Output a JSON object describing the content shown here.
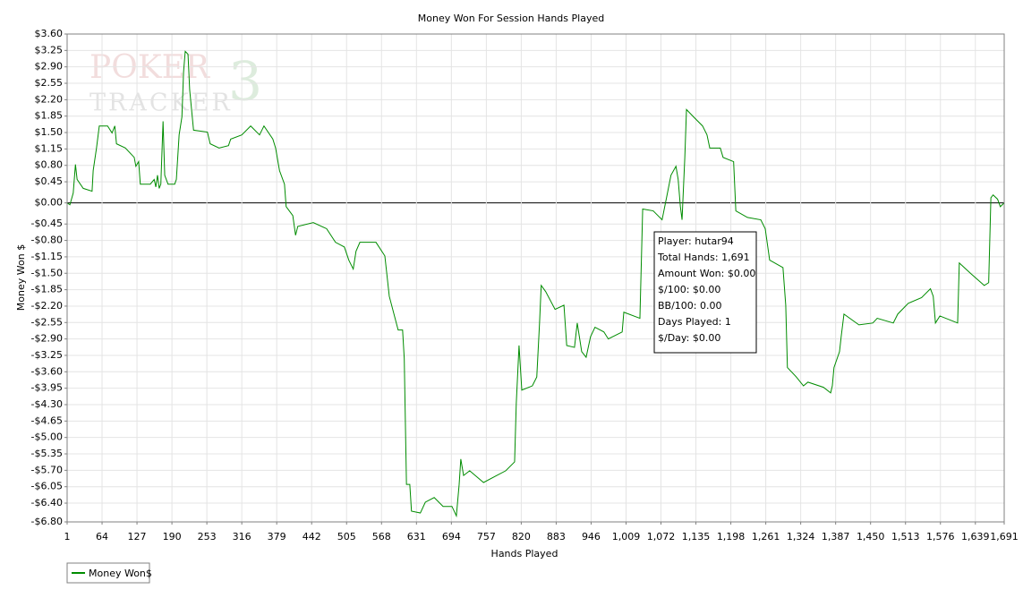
{
  "chart_data": {
    "type": "line",
    "title": "Money Won For Session Hands Played",
    "x_label": "Hands Played",
    "y_label": "Money Won $",
    "watermark": [
      "POKER",
      "TRACKER",
      "3"
    ],
    "tooltip": [
      "Player: hutar94",
      "Total Hands: 1,691",
      "Amount Won: $0.00",
      "$/100: $0.00",
      "BB/100: 0.00",
      "Days Played: 1",
      "$/Day: $0.00"
    ],
    "grid": true,
    "legend": "bottom-left",
    "xlim": [
      1,
      1691
    ],
    "ylim": [
      -6.8,
      3.6
    ],
    "xticks": [
      1,
      64,
      127,
      190,
      253,
      316,
      379,
      442,
      505,
      568,
      631,
      694,
      757,
      820,
      883,
      946,
      {
        "value": 1009,
        "label": "1,009"
      },
      {
        "value": 1072,
        "label": "1,072"
      },
      {
        "value": 1135,
        "label": "1,135"
      },
      {
        "value": 1198,
        "label": "1,198"
      },
      {
        "value": 1261,
        "label": "1,261"
      },
      {
        "value": 1324,
        "label": "1,324"
      },
      {
        "value": 1387,
        "label": "1,387"
      },
      {
        "value": 1450,
        "label": "1,450"
      },
      {
        "value": 1513,
        "label": "1,513"
      },
      {
        "value": 1576,
        "label": "1,576"
      },
      {
        "value": 1639,
        "label": "1,639"
      },
      {
        "value": 1691,
        "label": "1,691"
      }
    ],
    "yticks": [
      {
        "value": 3.6,
        "label": "$3.60"
      },
      {
        "value": 3.25,
        "label": "$3.25"
      },
      {
        "value": 2.9,
        "label": "$2.90"
      },
      {
        "value": 2.55,
        "label": "$2.55"
      },
      {
        "value": 2.2,
        "label": "$2.20"
      },
      {
        "value": 1.85,
        "label": "$1.85"
      },
      {
        "value": 1.5,
        "label": "$1.50"
      },
      {
        "value": 1.15,
        "label": "$1.15"
      },
      {
        "value": 0.8,
        "label": "$0.80"
      },
      {
        "value": 0.45,
        "label": "$0.45"
      },
      {
        "value": 0,
        "label": "$0.00"
      },
      {
        "value": -0.45,
        "label": "-$0.45"
      },
      {
        "value": -0.8,
        "label": "-$0.80"
      },
      {
        "value": -1.15,
        "label": "-$1.15"
      },
      {
        "value": -1.5,
        "label": "-$1.50"
      },
      {
        "value": -1.85,
        "label": "-$1.85"
      },
      {
        "value": -2.2,
        "label": "-$2.20"
      },
      {
        "value": -2.55,
        "label": "-$2.55"
      },
      {
        "value": -2.9,
        "label": "-$2.90"
      },
      {
        "value": -3.25,
        "label": "-$3.25"
      },
      {
        "value": -3.6,
        "label": "-$3.60"
      },
      {
        "value": -3.95,
        "label": "-$3.95"
      },
      {
        "value": -4.3,
        "label": "-$4.30"
      },
      {
        "value": -4.65,
        "label": "-$4.65"
      },
      {
        "value": -5.0,
        "label": "-$5.00"
      },
      {
        "value": -5.35,
        "label": "-$5.35"
      },
      {
        "value": -5.7,
        "label": "-$5.70"
      },
      {
        "value": -6.05,
        "label": "-$6.05"
      },
      {
        "value": -6.4,
        "label": "-$6.40"
      },
      {
        "value": -6.8,
        "label": "-$6.80"
      }
    ],
    "x": [
      1,
      6,
      12,
      16,
      19,
      30,
      46,
      48,
      54,
      59,
      74,
      82,
      87,
      90,
      106,
      122,
      125,
      130,
      133,
      151,
      158,
      161,
      164,
      167,
      170,
      174,
      177,
      183,
      195,
      198,
      203,
      208,
      211,
      214,
      219,
      222,
      229,
      254,
      259,
      275,
      292,
      296,
      316,
      332,
      348,
      356,
      372,
      377,
      384,
      393,
      396,
      408,
      413,
      417,
      445,
      469,
      485,
      501,
      509,
      517,
      522,
      529,
      558,
      574,
      582,
      598,
      606,
      609,
      613,
      619,
      622,
      638,
      647,
      663,
      679,
      695,
      703,
      708,
      711,
      716,
      727,
      752,
      776,
      792,
      808,
      811,
      816,
      821,
      840,
      848,
      853,
      856,
      864,
      881,
      897,
      902,
      916,
      921,
      929,
      937,
      945,
      953,
      969,
      977,
      1002,
      1005,
      1034,
      1039,
      1058,
      1074,
      1082,
      1090,
      1099,
      1103,
      1107,
      1110,
      1115,
      1118,
      1131,
      1147,
      1155,
      1160,
      1179,
      1184,
      1203,
      1207,
      1228,
      1252,
      1260,
      1268,
      1292,
      1297,
      1300,
      1316,
      1329,
      1337,
      1365,
      1378,
      1381,
      1384,
      1394,
      1397,
      1402,
      1429,
      1454,
      1462,
      1491,
      1499,
      1518,
      1542,
      1558,
      1563,
      1567,
      1575,
      1607,
      1610,
      1631,
      1655,
      1663,
      1667,
      1671,
      1679,
      1684,
      1691
    ],
    "series": [
      {
        "name": "Money Won$",
        "color": "#008c00",
        "values": [
          0,
          -0.04,
          0.21,
          0.82,
          0.5,
          0.31,
          0.25,
          0.69,
          1.17,
          1.64,
          1.64,
          1.49,
          1.64,
          1.26,
          1.17,
          0.97,
          0.78,
          0.88,
          0.4,
          0.4,
          0.5,
          0.34,
          0.59,
          0.31,
          0.4,
          1.74,
          0.59,
          0.4,
          0.4,
          0.5,
          1.45,
          1.83,
          2.79,
          3.23,
          3.17,
          2.41,
          1.55,
          1.51,
          1.26,
          1.17,
          1.22,
          1.36,
          1.45,
          1.64,
          1.45,
          1.64,
          1.36,
          1.17,
          0.69,
          0.4,
          -0.08,
          -0.27,
          -0.69,
          -0.5,
          -0.42,
          -0.55,
          -0.84,
          -0.94,
          -1.22,
          -1.41,
          -1.03,
          -0.84,
          -0.84,
          -1.13,
          -1.99,
          -2.71,
          -2.71,
          -3.32,
          -6.0,
          -6.0,
          -6.57,
          -6.61,
          -6.38,
          -6.28,
          -6.47,
          -6.47,
          -6.67,
          -6.0,
          -5.46,
          -5.81,
          -5.71,
          -5.96,
          -5.81,
          -5.71,
          -5.52,
          -4.28,
          -3.04,
          -3.99,
          -3.9,
          -3.71,
          -2.56,
          -1.76,
          -1.89,
          -2.27,
          -2.18,
          -3.04,
          -3.08,
          -2.56,
          -3.17,
          -3.29,
          -2.85,
          -2.65,
          -2.75,
          -2.9,
          -2.75,
          -2.33,
          -2.46,
          -0.13,
          -0.17,
          -0.36,
          0.11,
          0.59,
          0.78,
          0.5,
          -0.08,
          -0.36,
          0.97,
          1.99,
          1.83,
          1.64,
          1.45,
          1.17,
          1.17,
          0.97,
          0.88,
          -0.17,
          -0.31,
          -0.36,
          -0.55,
          -1.22,
          -1.38,
          -2.18,
          -3.51,
          -3.71,
          -3.9,
          -3.82,
          -3.93,
          -4.05,
          -3.9,
          -3.51,
          -3.17,
          -2.85,
          -2.37,
          -2.6,
          -2.56,
          -2.46,
          -2.56,
          -2.37,
          -2.14,
          -2.02,
          -1.83,
          -1.99,
          -2.56,
          -2.41,
          -2.56,
          -1.28,
          -1.51,
          -1.76,
          -1.7,
          0.11,
          0.17,
          0.08,
          -0.08,
          0
        ]
      }
    ]
  }
}
